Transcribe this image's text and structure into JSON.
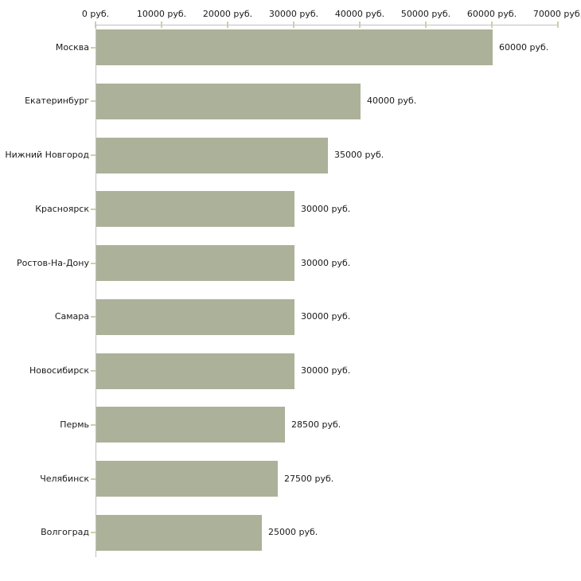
{
  "chart_data": {
    "type": "bar",
    "orientation": "horizontal",
    "categories": [
      "Москва",
      "Екатеринбург",
      "Нижний Новгород",
      "Красноярск",
      "Ростов-На-Дону",
      "Самара",
      "Новосибирск",
      "Пермь",
      "Челябинск",
      "Волгоград"
    ],
    "values": [
      60000,
      40000,
      35000,
      30000,
      30000,
      30000,
      30000,
      28500,
      27500,
      25000
    ],
    "value_labels": [
      "60000 руб.",
      "40000 руб.",
      "35000 руб.",
      "30000 руб.",
      "30000 руб.",
      "30000 руб.",
      "30000 руб.",
      "28500 руб.",
      "27500 руб.",
      "25000 руб."
    ],
    "unit": "руб.",
    "xlim": [
      0,
      70000
    ],
    "x_ticks": [
      0,
      10000,
      20000,
      30000,
      40000,
      50000,
      60000,
      70000
    ],
    "x_tick_labels": [
      "0 руб.",
      "10000 руб.",
      "20000 руб.",
      "30000 руб.",
      "40000 руб.",
      "50000 руб.",
      "60000 руб.",
      "70000 руб."
    ],
    "axis_position": "top",
    "grid": false,
    "legend": false,
    "colors": {
      "bar": "#acb199",
      "axis_line": "#c0c0c0",
      "tick": "#cfcfa8",
      "text": "#1a1a1a",
      "background": "#ffffff"
    }
  }
}
